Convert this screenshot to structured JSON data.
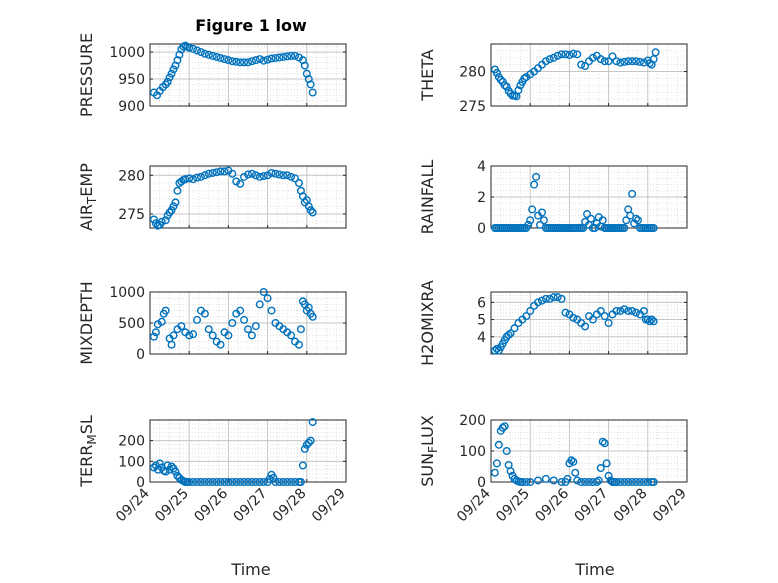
{
  "figure": {
    "title": "Figure 1 low",
    "xlabel": "Time",
    "marker_color": "#0072BD",
    "grid": true,
    "x_tick_labels": [
      "09/24",
      "09/25",
      "09/26",
      "09/27",
      "09/28",
      "09/29"
    ]
  },
  "chart_data": [
    {
      "type": "scatter",
      "ylabel": "PRESSURE",
      "ylim": [
        900,
        1015
      ],
      "yticks": [
        "900",
        "950",
        "1000"
      ],
      "x": [
        24.1,
        24.18,
        24.25,
        24.33,
        24.4,
        24.45,
        24.5,
        24.55,
        24.6,
        24.65,
        24.7,
        24.75,
        24.8,
        24.85,
        24.9,
        24.95,
        25.0,
        25.1,
        25.2,
        25.3,
        25.4,
        25.5,
        25.6,
        25.7,
        25.8,
        25.9,
        26.0,
        26.1,
        26.2,
        26.3,
        26.4,
        26.5,
        26.6,
        26.7,
        26.8,
        26.9,
        27.0,
        27.1,
        27.2,
        27.3,
        27.4,
        27.5,
        27.6,
        27.7,
        27.8,
        27.9,
        27.95,
        28.0,
        28.05,
        28.1,
        28.15
      ],
      "y": [
        925,
        920,
        928,
        935,
        940,
        945,
        953,
        960,
        968,
        975,
        985,
        995,
        1005,
        1010,
        1012,
        1010,
        1008,
        1006,
        1003,
        1000,
        997,
        995,
        993,
        991,
        989,
        987,
        985,
        983,
        982,
        981,
        981,
        981,
        983,
        985,
        987,
        984,
        986,
        988,
        989,
        990,
        991,
        992,
        993,
        993,
        990,
        985,
        975,
        960,
        950,
        940,
        925
      ]
    },
    {
      "type": "scatter",
      "ylabel": "THETA",
      "ylim": [
        275,
        284
      ],
      "yticks": [
        "275",
        "280"
      ],
      "x": [
        24.1,
        24.15,
        24.2,
        24.25,
        24.3,
        24.35,
        24.4,
        24.45,
        24.5,
        24.55,
        24.6,
        24.65,
        24.7,
        24.75,
        24.8,
        24.85,
        24.9,
        25.0,
        25.1,
        25.2,
        25.3,
        25.4,
        25.5,
        25.6,
        25.7,
        25.8,
        25.9,
        26.0,
        26.1,
        26.2,
        26.3,
        26.4,
        26.5,
        26.6,
        26.7,
        26.8,
        26.9,
        27.0,
        27.1,
        27.2,
        27.3,
        27.4,
        27.5,
        27.6,
        27.7,
        27.8,
        27.9,
        28.0,
        28.05,
        28.1,
        28.15,
        28.2
      ],
      "y": [
        280.3,
        279.8,
        279.2,
        278.8,
        278.5,
        278.0,
        277.8,
        277.2,
        276.8,
        276.5,
        276.5,
        276.4,
        277.3,
        278.0,
        278.5,
        279.0,
        279.2,
        279.6,
        280.0,
        280.5,
        281.0,
        281.5,
        281.8,
        282.0,
        282.3,
        282.5,
        282.5,
        282.4,
        282.6,
        282.5,
        281.0,
        280.8,
        281.5,
        282.0,
        282.3,
        281.8,
        281.5,
        281.5,
        282.2,
        281.5,
        281.3,
        281.4,
        281.5,
        281.5,
        281.5,
        281.4,
        281.3,
        281.6,
        281.2,
        281.0,
        281.8,
        282.8
      ]
    },
    {
      "type": "scatter",
      "ylabel": "AIR_TEMP",
      "ylim": [
        273.2,
        281.2
      ],
      "yticks": [
        "275",
        "280"
      ],
      "x": [
        24.1,
        24.15,
        24.2,
        24.25,
        24.3,
        24.4,
        24.45,
        24.5,
        24.55,
        24.6,
        24.65,
        24.7,
        24.75,
        24.8,
        24.85,
        24.9,
        25.0,
        25.1,
        25.2,
        25.3,
        25.4,
        25.5,
        25.6,
        25.7,
        25.8,
        25.9,
        26.0,
        26.1,
        26.2,
        26.3,
        26.4,
        26.5,
        26.6,
        26.7,
        26.8,
        26.9,
        27.0,
        27.1,
        27.2,
        27.3,
        27.4,
        27.5,
        27.6,
        27.7,
        27.8,
        27.85,
        27.9,
        27.95,
        28.0,
        28.05,
        28.1,
        28.15
      ],
      "y": [
        274.3,
        273.8,
        273.5,
        273.6,
        274.0,
        274.2,
        274.8,
        275.2,
        275.5,
        276.0,
        276.5,
        278.0,
        279.0,
        279.2,
        279.4,
        279.5,
        279.6,
        279.5,
        279.7,
        279.8,
        280.0,
        280.2,
        280.3,
        280.4,
        280.5,
        280.5,
        280.6,
        280.2,
        279.2,
        278.9,
        279.8,
        280.1,
        280.2,
        280.0,
        279.8,
        279.9,
        280.0,
        280.3,
        280.2,
        280.1,
        280.0,
        280.0,
        279.8,
        279.6,
        279.0,
        278.0,
        277.3,
        276.5,
        276.8,
        276.0,
        275.5,
        275.2
      ]
    },
    {
      "type": "scatter",
      "ylabel": "RAINFALL",
      "ylim": [
        0,
        4
      ],
      "yticks": [
        "0",
        "2",
        "4"
      ],
      "x": [
        24.1,
        24.15,
        24.2,
        24.25,
        24.3,
        24.35,
        24.4,
        24.45,
        24.5,
        24.55,
        24.6,
        24.65,
        24.7,
        24.75,
        24.8,
        24.85,
        24.9,
        24.95,
        25.0,
        25.05,
        25.1,
        25.15,
        25.2,
        25.25,
        25.3,
        25.35,
        25.4,
        25.45,
        25.5,
        25.55,
        25.6,
        25.65,
        25.7,
        25.75,
        25.8,
        25.85,
        25.9,
        25.95,
        26.0,
        26.05,
        26.1,
        26.15,
        26.2,
        26.25,
        26.3,
        26.35,
        26.4,
        26.45,
        26.5,
        26.55,
        26.6,
        26.65,
        26.7,
        26.75,
        26.8,
        26.85,
        26.9,
        26.95,
        27.0,
        27.05,
        27.1,
        27.15,
        27.2,
        27.25,
        27.3,
        27.35,
        27.4,
        27.45,
        27.5,
        27.55,
        27.6,
        27.65,
        27.7,
        27.75,
        27.8,
        27.85,
        27.9,
        27.95,
        28.0,
        28.05,
        28.1,
        28.15
      ],
      "y": [
        0,
        0,
        0,
        0,
        0,
        0,
        0,
        0,
        0,
        0,
        0,
        0,
        0,
        0,
        0,
        0,
        0,
        0.2,
        0.5,
        1.2,
        2.8,
        3.3,
        0.8,
        0.2,
        1.0,
        0.5,
        0,
        0,
        0,
        0,
        0,
        0,
        0,
        0,
        0,
        0,
        0,
        0,
        0,
        0,
        0,
        0,
        0,
        0,
        0,
        0,
        0.4,
        0.9,
        0.2,
        0.6,
        0,
        0,
        0.3,
        0.7,
        0.1,
        0.5,
        0,
        0,
        0,
        0,
        0,
        0,
        0,
        0,
        0,
        0,
        0,
        0.5,
        1.2,
        0.8,
        2.2,
        0.3,
        0.6,
        0.5,
        0,
        0,
        0,
        0,
        0,
        0,
        0,
        0
      ]
    },
    {
      "type": "scatter",
      "ylabel": "MIXDEPTH",
      "ylim": [
        0,
        1000
      ],
      "yticks": [
        "0",
        "500",
        "1000"
      ],
      "x": [
        24.1,
        24.15,
        24.2,
        24.3,
        24.35,
        24.4,
        24.5,
        24.55,
        24.6,
        24.7,
        24.8,
        24.9,
        25.0,
        25.1,
        25.2,
        25.3,
        25.4,
        25.5,
        25.6,
        25.7,
        25.8,
        25.9,
        26.0,
        26.1,
        26.2,
        26.3,
        26.4,
        26.5,
        26.6,
        26.7,
        26.8,
        26.9,
        27.0,
        27.1,
        27.2,
        27.3,
        27.4,
        27.5,
        27.6,
        27.7,
        27.8,
        27.85,
        27.9,
        27.95,
        28.0,
        28.05,
        28.1,
        28.15
      ],
      "y": [
        280,
        350,
        480,
        520,
        650,
        700,
        250,
        150,
        300,
        400,
        450,
        350,
        300,
        320,
        550,
        700,
        650,
        400,
        300,
        200,
        150,
        350,
        300,
        500,
        650,
        700,
        550,
        400,
        300,
        450,
        800,
        1000,
        900,
        700,
        500,
        450,
        400,
        350,
        300,
        200,
        150,
        400,
        850,
        800,
        700,
        750,
        650,
        600
      ]
    },
    {
      "type": "scatter",
      "ylabel": "H2OMIXRA",
      "ylim": [
        3,
        6.6
      ],
      "yticks": [
        "4",
        "5",
        "6"
      ],
      "x": [
        24.1,
        24.15,
        24.2,
        24.25,
        24.3,
        24.35,
        24.4,
        24.45,
        24.5,
        24.6,
        24.7,
        24.8,
        24.9,
        25.0,
        25.1,
        25.2,
        25.3,
        25.4,
        25.5,
        25.6,
        25.7,
        25.8,
        25.9,
        26.0,
        26.1,
        26.2,
        26.3,
        26.4,
        26.5,
        26.6,
        26.7,
        26.8,
        26.9,
        27.0,
        27.1,
        27.2,
        27.3,
        27.4,
        27.5,
        27.6,
        27.7,
        27.8,
        27.9,
        27.95,
        28.0,
        28.05,
        28.1,
        28.15
      ],
      "y": [
        3.2,
        3.3,
        3.2,
        3.4,
        3.6,
        3.8,
        4.0,
        4.1,
        4.2,
        4.5,
        4.8,
        5.0,
        5.2,
        5.5,
        5.8,
        6.0,
        6.1,
        6.2,
        6.2,
        6.3,
        6.3,
        6.2,
        5.4,
        5.3,
        5.1,
        5.0,
        4.8,
        4.6,
        5.2,
        5.0,
        5.3,
        5.5,
        5.2,
        4.8,
        5.3,
        5.5,
        5.5,
        5.6,
        5.5,
        5.5,
        5.4,
        5.3,
        5.5,
        5.0,
        5.0,
        4.9,
        5.0,
        4.9
      ]
    },
    {
      "type": "scatter",
      "ylabel": "TERR_MSL",
      "ylim": [
        0,
        300
      ],
      "yticks": [
        "0",
        "100",
        "200"
      ],
      "x": [
        24.1,
        24.15,
        24.2,
        24.25,
        24.3,
        24.35,
        24.4,
        24.45,
        24.5,
        24.55,
        24.6,
        24.65,
        24.7,
        24.75,
        24.8,
        24.85,
        24.9,
        24.95,
        25.0,
        25.1,
        25.2,
        25.3,
        25.4,
        25.5,
        25.6,
        25.7,
        25.8,
        25.9,
        26.0,
        26.1,
        26.2,
        26.3,
        26.4,
        26.5,
        26.6,
        26.7,
        26.8,
        26.9,
        27.0,
        27.05,
        27.1,
        27.15,
        27.2,
        27.3,
        27.4,
        27.5,
        27.6,
        27.7,
        27.8,
        27.85,
        27.9,
        27.95,
        28.0,
        28.05,
        28.1,
        28.15
      ],
      "y": [
        70,
        80,
        60,
        90,
        70,
        55,
        50,
        80,
        60,
        75,
        65,
        50,
        30,
        20,
        10,
        5,
        0,
        0,
        0,
        0,
        0,
        0,
        0,
        0,
        0,
        0,
        0,
        0,
        0,
        0,
        0,
        0,
        0,
        0,
        0,
        0,
        0,
        0,
        0,
        15,
        35,
        20,
        0,
        0,
        0,
        0,
        0,
        0,
        0,
        0,
        80,
        160,
        180,
        190,
        200,
        290
      ]
    },
    {
      "type": "scatter",
      "ylabel": "SUN_FLUX",
      "ylim": [
        0,
        200
      ],
      "yticks": [
        "0",
        "100",
        "200"
      ],
      "x": [
        24.1,
        24.15,
        24.2,
        24.25,
        24.3,
        24.35,
        24.4,
        24.45,
        24.5,
        24.55,
        24.6,
        24.65,
        24.7,
        24.75,
        24.8,
        24.9,
        25.0,
        25.2,
        25.4,
        25.6,
        25.8,
        25.9,
        25.95,
        26.0,
        26.05,
        26.1,
        26.15,
        26.2,
        26.3,
        26.4,
        26.5,
        26.6,
        26.7,
        26.75,
        26.8,
        26.85,
        26.9,
        26.95,
        27.0,
        27.05,
        27.1,
        27.15,
        27.2,
        27.3,
        27.4,
        27.5,
        27.6,
        27.7,
        27.8,
        27.9,
        28.0,
        28.1,
        28.15
      ],
      "y": [
        30,
        60,
        120,
        165,
        175,
        180,
        100,
        55,
        35,
        20,
        10,
        5,
        2,
        0,
        0,
        0,
        0,
        5,
        10,
        5,
        0,
        0,
        10,
        60,
        70,
        65,
        30,
        5,
        0,
        0,
        0,
        0,
        0,
        5,
        45,
        130,
        125,
        60,
        20,
        5,
        0,
        0,
        0,
        0,
        0,
        0,
        0,
        0,
        0,
        0,
        0,
        0,
        0
      ]
    }
  ]
}
